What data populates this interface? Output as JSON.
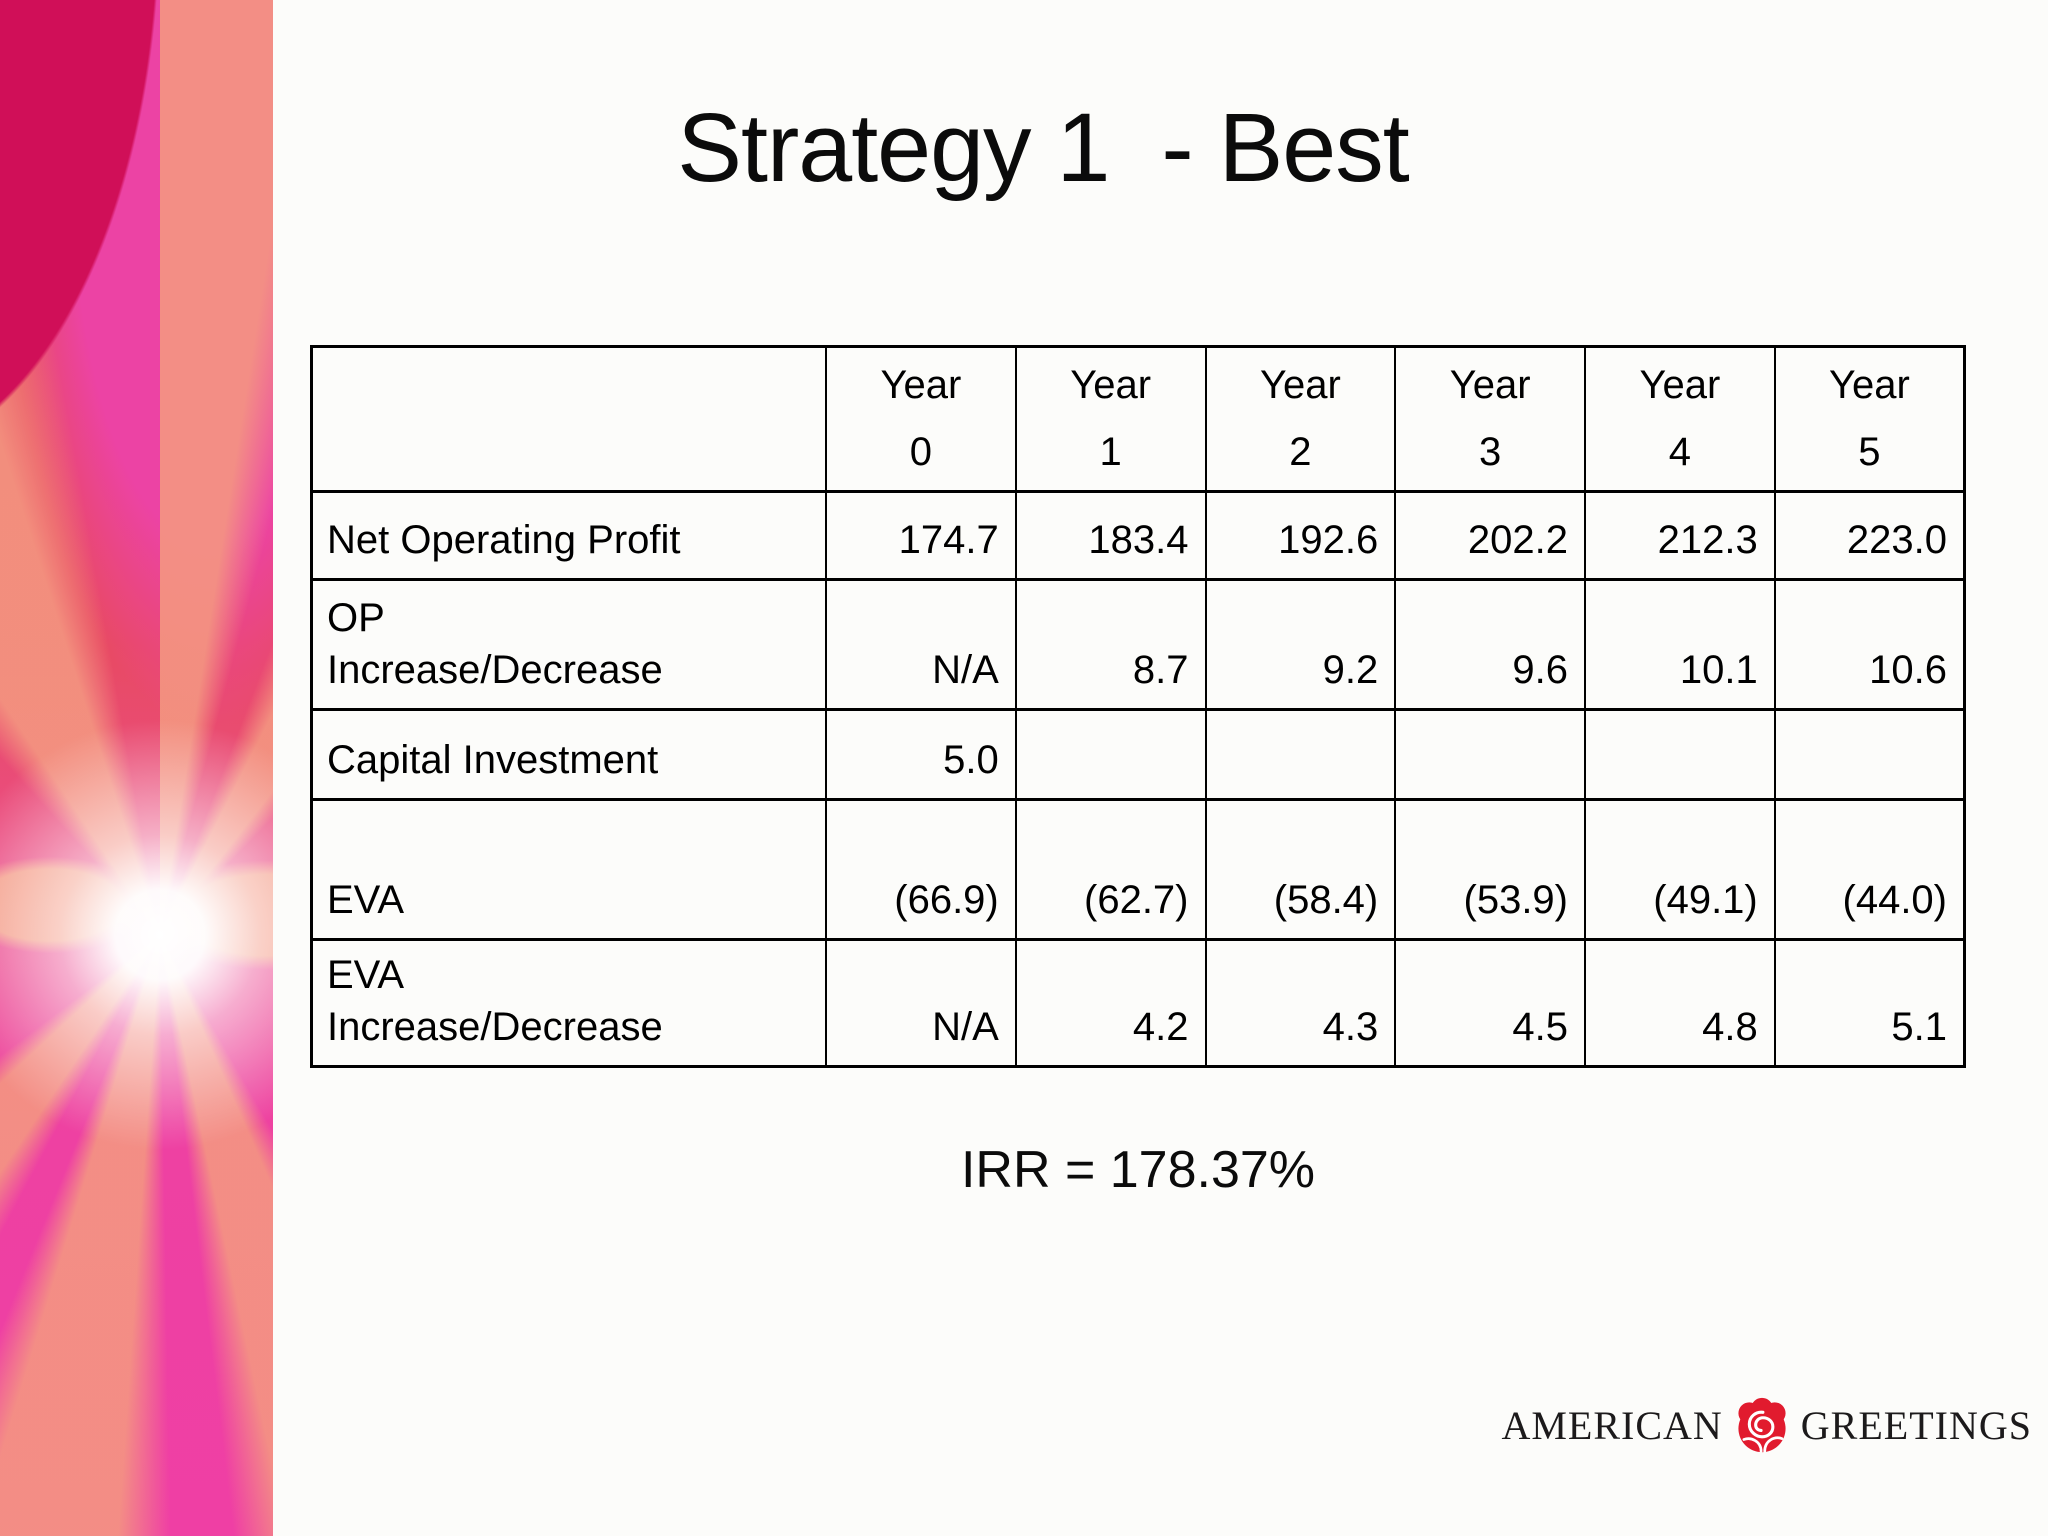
{
  "slide": {
    "title": "Strategy 1  - Best",
    "irr": "IRR = 178.37%"
  },
  "table": {
    "corner": "",
    "col_headers": [
      "Year\n0",
      "Year\n1",
      "Year\n2",
      "Year\n3",
      "Year\n4",
      "Year\n5"
    ],
    "rows": [
      {
        "label": "Net Operating Profit",
        "values": [
          "174.7",
          "183.4",
          "192.6",
          "202.2",
          "212.3",
          "223.0"
        ]
      },
      {
        "label": "OP\nIncrease/Decrease",
        "values": [
          "N/A",
          "8.7",
          "9.2",
          "9.6",
          "10.1",
          "10.6"
        ]
      },
      {
        "label": "Capital Investment",
        "values": [
          "5.0",
          "",
          "",
          "",
          "",
          ""
        ]
      },
      {
        "label": "EVA",
        "values": [
          "(66.9)",
          "(62.7)",
          "(58.4)",
          "(53.9)",
          "(49.1)",
          "(44.0)"
        ]
      },
      {
        "label": "EVA\nIncrease/Decrease",
        "values": [
          "N/A",
          "4.2",
          "4.3",
          "4.5",
          "4.8",
          "5.1"
        ]
      }
    ]
  },
  "logo": {
    "left": "AMERICAN",
    "right": "GREETINGS",
    "icon": "rose-icon"
  },
  "colors": {
    "accent_magenta": "#ee3fa2",
    "accent_red": "#e8495f",
    "accent_crimson": "#d00f58",
    "accent_salmon": "#f39981",
    "rose_red": "#e11b2e",
    "text": "#000000",
    "background": "#fcfcfa"
  }
}
